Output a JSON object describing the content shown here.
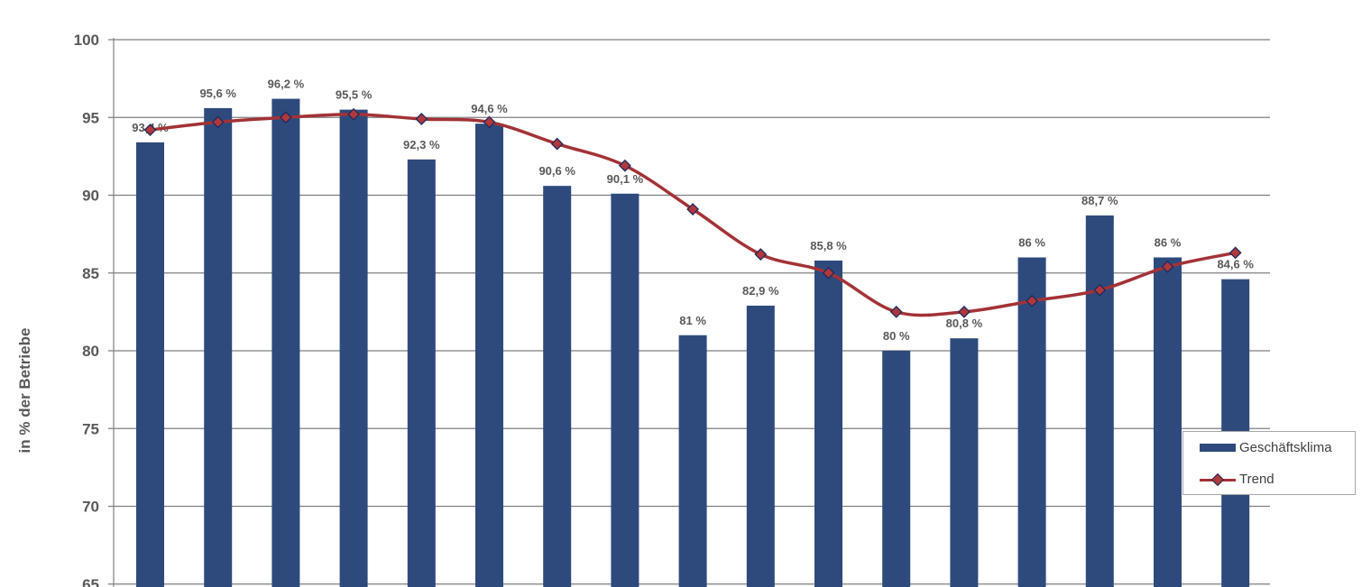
{
  "chart_data": {
    "type": "bar",
    "title": "",
    "xlabel": "",
    "ylabel": "in % der Betriebe",
    "ylim": [
      65,
      100
    ],
    "yticks": [
      "65",
      "70",
      "75",
      "80",
      "85",
      "90",
      "95",
      "100"
    ],
    "grid": true,
    "legend_position": "right",
    "colors": {
      "bar": "#2e4a7d",
      "line": "#a33236",
      "marker": "#b0383b",
      "marker_border": "#1f2a5e",
      "grid": "#7f7f7f",
      "label": "#595959"
    },
    "series": [
      {
        "name": "Geschäftsklima",
        "type": "bar",
        "values": [
          93.4,
          95.6,
          96.2,
          95.5,
          92.3,
          94.6,
          90.6,
          90.1,
          81,
          82.9,
          85.8,
          80,
          80.8,
          86,
          88.7,
          86,
          84.6
        ],
        "labels": [
          "93,4 %",
          "95,6 %",
          "96,2 %",
          "95,5 %",
          "92,3 %",
          "94,6 %",
          "90,6 %",
          "90,1 %",
          "81 %",
          "82,9 %",
          "85,8 %",
          "80 %",
          "80,8 %",
          "86 %",
          "88,7 %",
          "86 %",
          "84,6 %"
        ]
      },
      {
        "name": "Trend",
        "type": "line",
        "smooth": true,
        "values": [
          94.2,
          94.7,
          95.0,
          95.2,
          94.9,
          94.7,
          93.3,
          91.9,
          89.1,
          86.2,
          85.0,
          82.5,
          82.5,
          83.2,
          83.9,
          85.4,
          86.3
        ]
      }
    ]
  }
}
